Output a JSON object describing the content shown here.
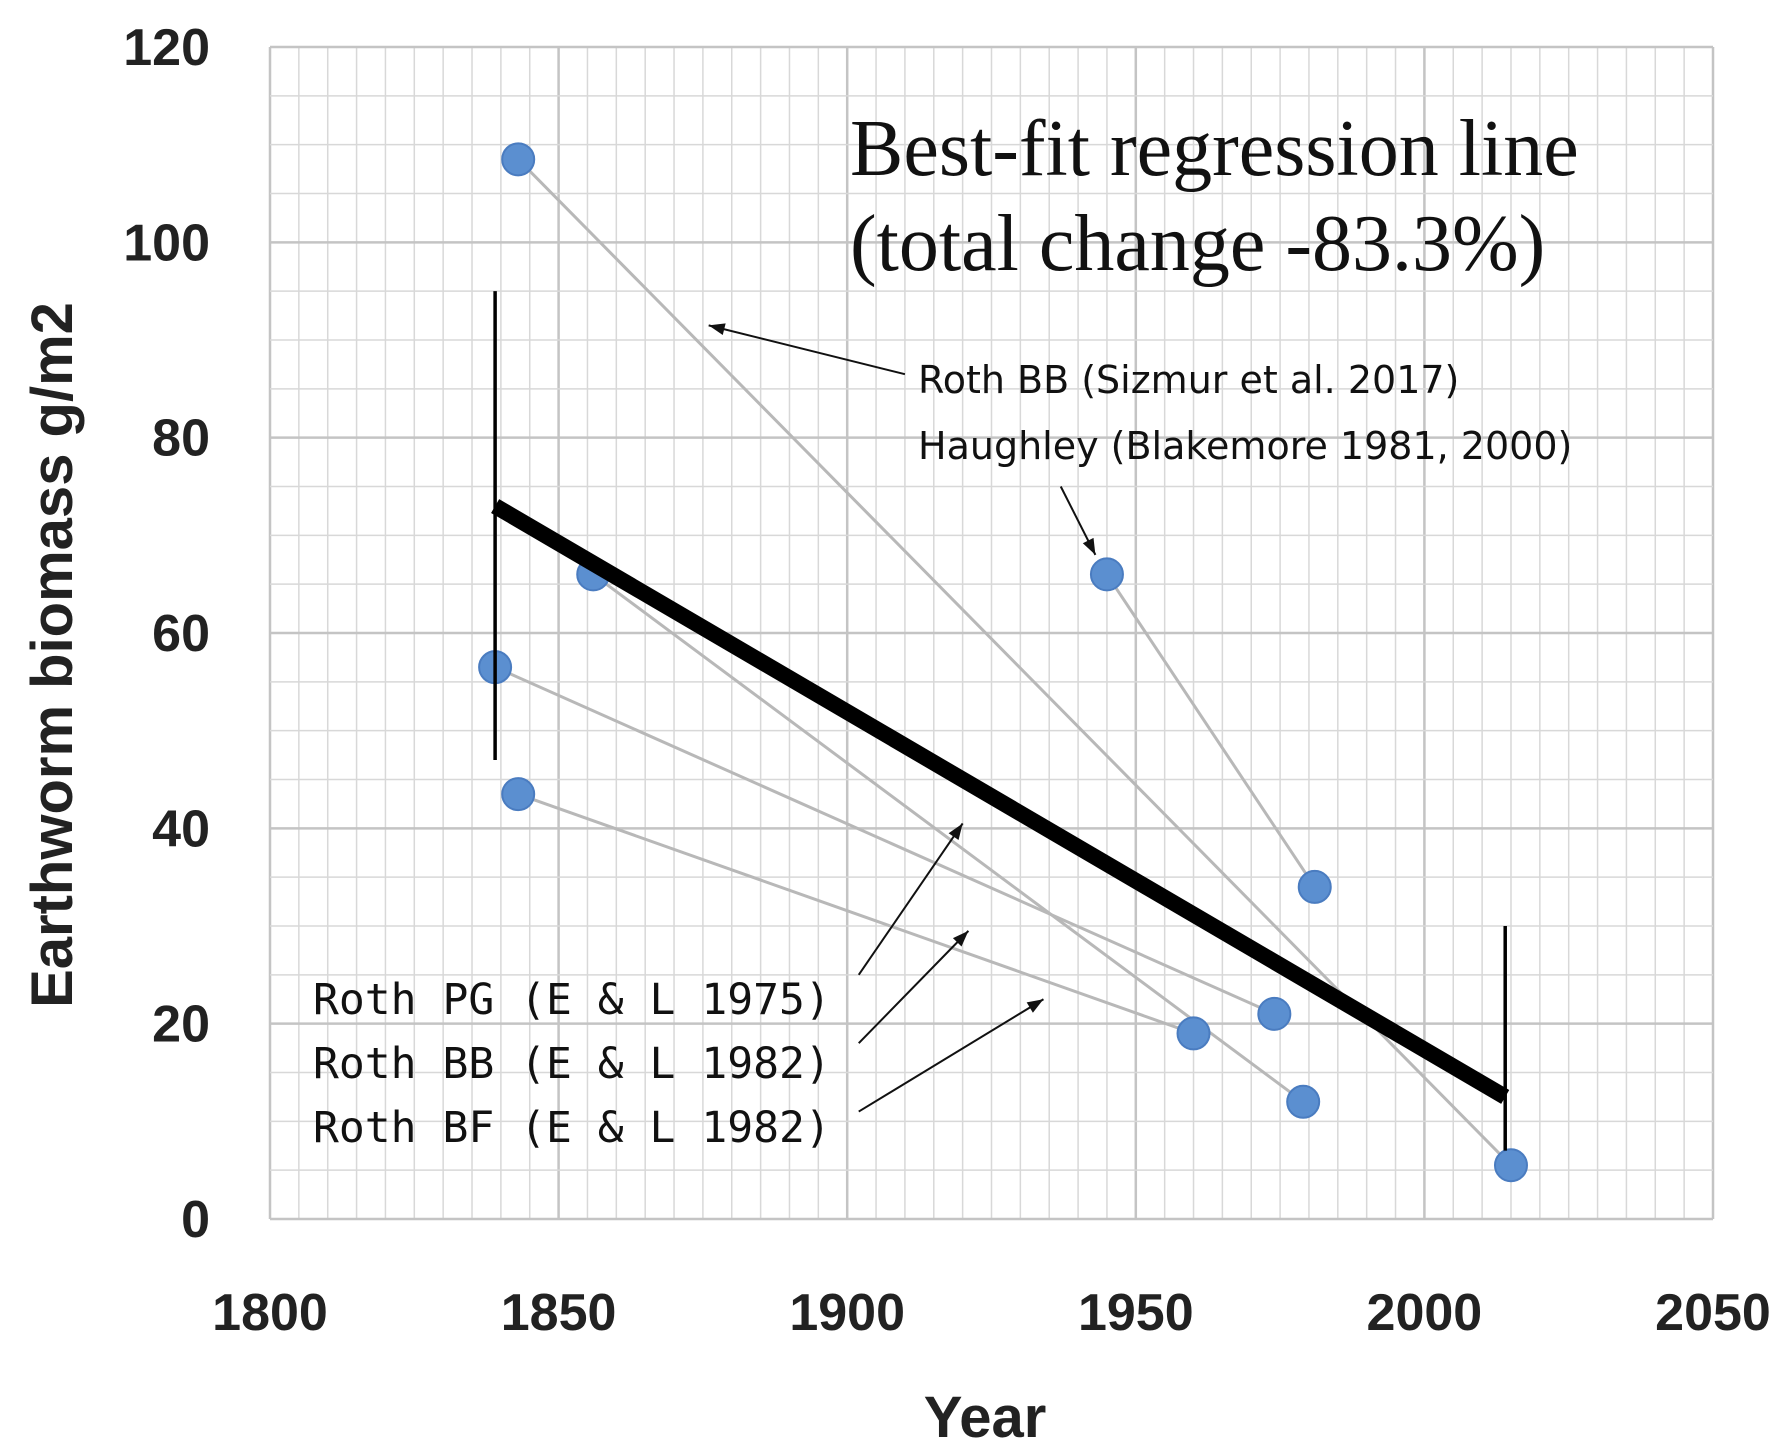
{
  "chart_data": {
    "type": "scatter",
    "xlabel": "Year",
    "ylabel": "Earthworm biomass g/m2",
    "xlim": [
      1800,
      2050
    ],
    "ylim": [
      0,
      120
    ],
    "x_ticks": [
      "1800",
      "1850",
      "1900",
      "1950",
      "2000",
      "2050"
    ],
    "y_ticks": [
      "0",
      "20",
      "40",
      "60",
      "80",
      "100",
      "120"
    ],
    "grid": true,
    "colors": {
      "points": "#5b8fd0",
      "connector": "#b8b8b8",
      "regression": "#000000",
      "grid": "#d8d8d8"
    },
    "series": [
      {
        "name": "Roth BB (Sizmur et al. 2017)",
        "x": [
          1843,
          2015
        ],
        "y": [
          108.5,
          5.5
        ]
      },
      {
        "name": "Haughley (Blakemore 1981, 2000)",
        "x": [
          1945,
          1981
        ],
        "y": [
          66,
          34
        ]
      },
      {
        "name": "Roth PG (E & L 1975)",
        "x": [
          1839,
          1974
        ],
        "y": [
          56.5,
          21
        ]
      },
      {
        "name": "Roth BB (E & L 1982)",
        "x": [
          1843,
          1960
        ],
        "y": [
          43.5,
          19
        ]
      },
      {
        "name": "Roth BF (E & L 1982)",
        "x": [
          1856,
          1979
        ],
        "y": [
          66,
          12
        ]
      }
    ],
    "regression": {
      "label_line1": "Best-fit regression line",
      "label_line2": "(total change -83.3%)",
      "x": [
        1839,
        2014
      ],
      "y": [
        73,
        12.5
      ]
    },
    "error_bars": [
      {
        "x": 1839,
        "low": 47,
        "high": 95
      },
      {
        "x": 2014,
        "low": 7,
        "high": 30
      }
    ],
    "annotations": {
      "sizmur": "Roth BB (Sizmur et al. 2017)",
      "haughley": "Haughley (Blakemore 1981, 2000)",
      "roth_pg": "Roth PG  (E & L 1975)",
      "roth_bb": "Roth BB  (E & L 1982)",
      "roth_bf": "Roth BF  (E & L 1982)"
    }
  }
}
